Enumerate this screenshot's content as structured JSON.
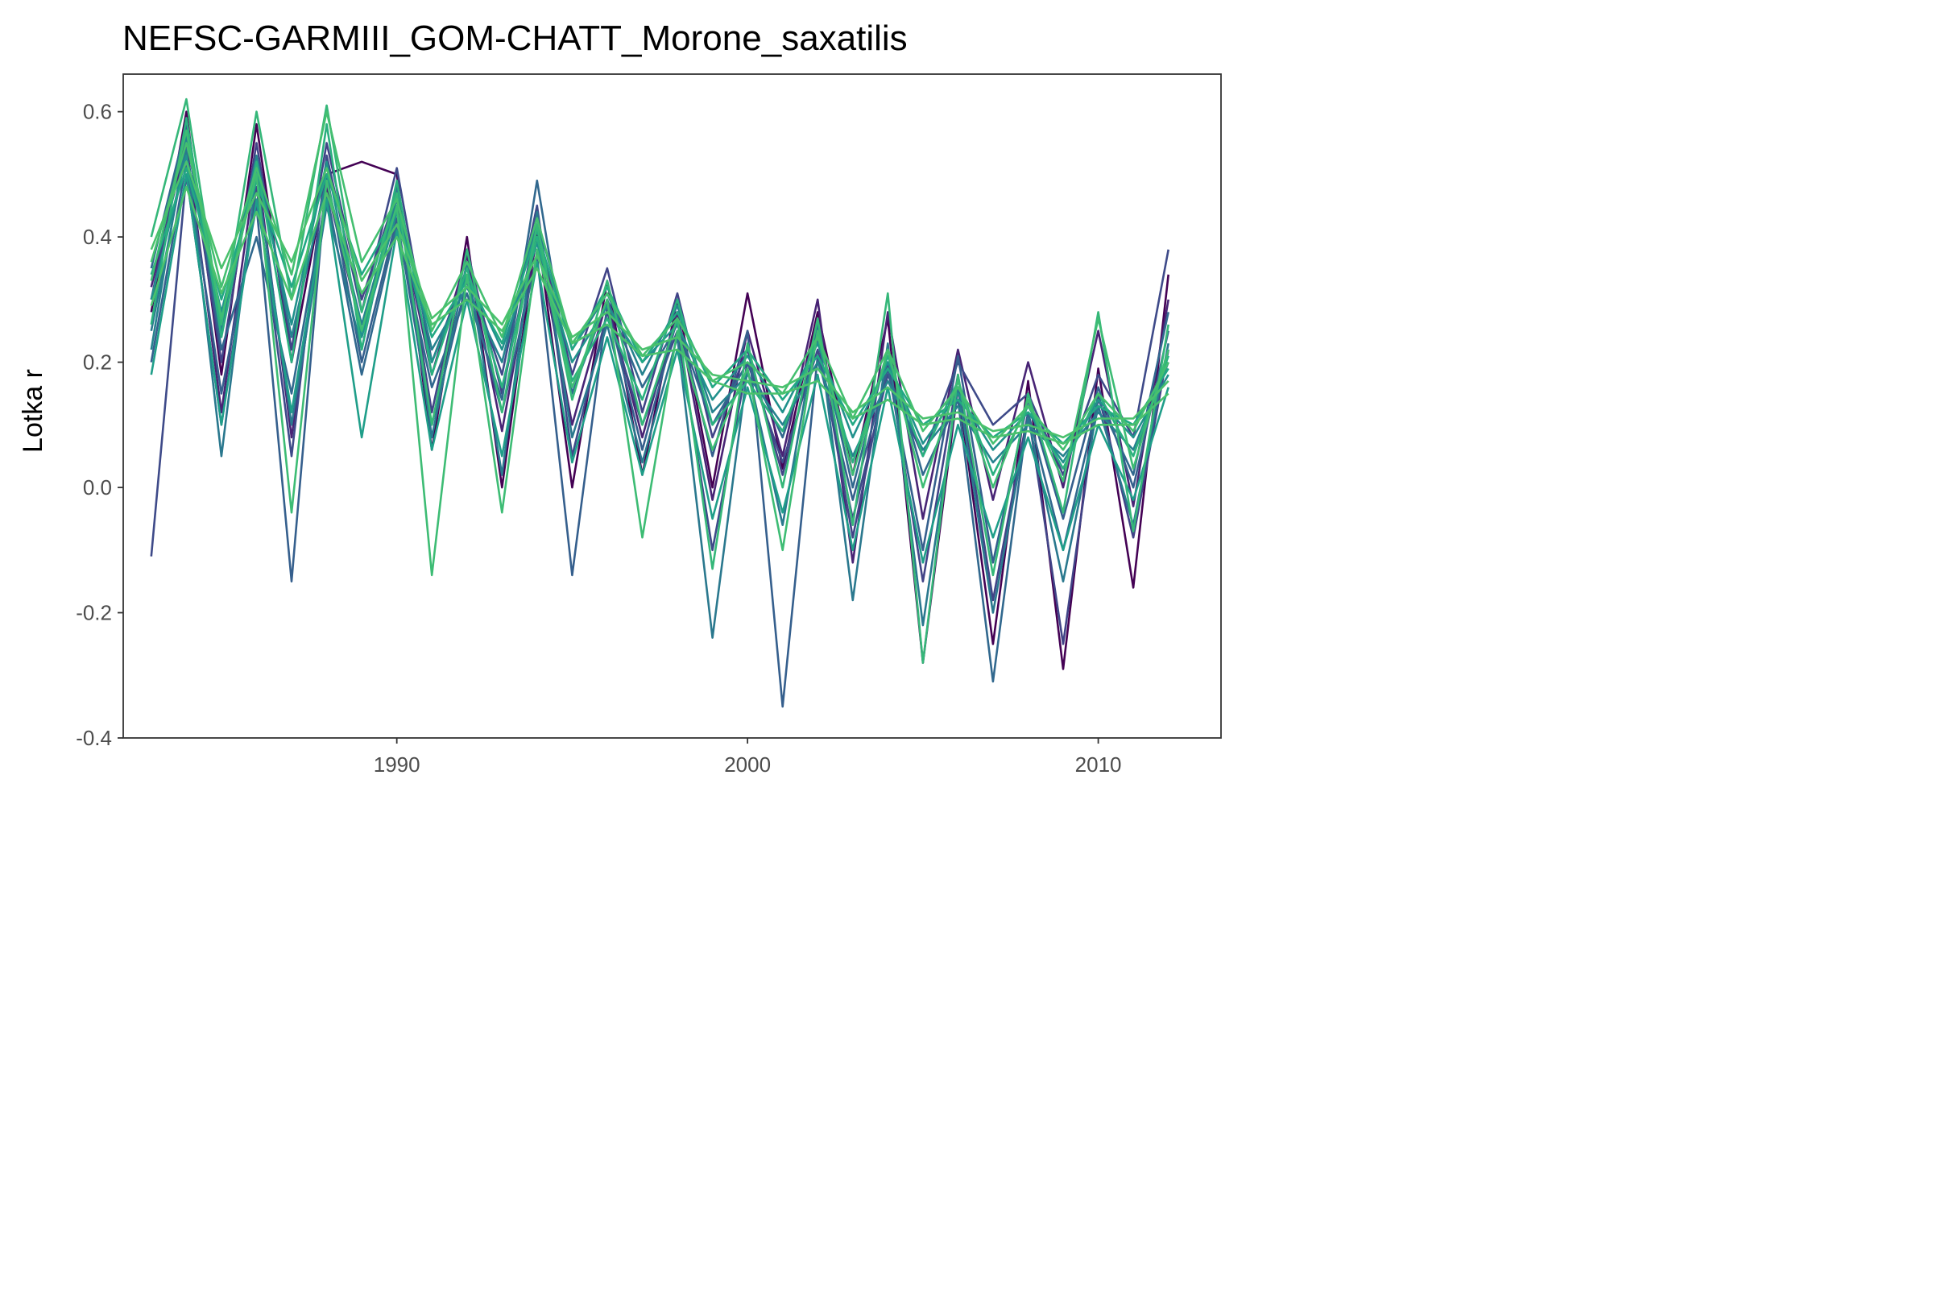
{
  "chart_data": {
    "type": "line",
    "title": "NEFSC-GARMIII_GOM-CHATT_Morone_saxatilis",
    "xlabel": "",
    "ylabel": "Lotka r",
    "xlim": [
      1982.2,
      2013.5
    ],
    "ylim": [
      -0.4,
      0.66
    ],
    "x_ticks": [
      1990,
      2000,
      2010
    ],
    "y_ticks": [
      -0.4,
      -0.2,
      0.0,
      0.2,
      0.4,
      0.6
    ],
    "y_tick_labels": [
      "-0.4",
      "-0.2",
      "0.0",
      "0.2",
      "0.4",
      "0.6"
    ],
    "grid": false,
    "legend": "none",
    "colors": [
      "#440154",
      "#3e4a89",
      "#31688e",
      "#26828e",
      "#1f9e89",
      "#35b779",
      "#4ac16d"
    ],
    "x": [
      1983,
      1984,
      1985,
      1986,
      1987,
      1988,
      1989,
      1990,
      1991,
      1992,
      1993,
      1994,
      1995,
      1996,
      1997,
      1998,
      1999,
      2000,
      2001,
      2002,
      2003,
      2004,
      2005,
      2006,
      2007,
      2008,
      2009,
      2010,
      2011,
      2012
    ],
    "series": [
      {
        "color": "#440154",
        "values": [
          0.28,
          0.6,
          0.18,
          0.58,
          0.2,
          0.5,
          0.52,
          0.5,
          0.06,
          0.4,
          0.0,
          0.41,
          0.0,
          0.33,
          0.02,
          0.3,
          0.0,
          0.31,
          0.03,
          0.28,
          0.02,
          0.27,
          -0.28,
          0.16,
          -0.25,
          0.17,
          -0.29,
          0.19,
          -0.16,
          0.34
        ]
      },
      {
        "color": "#482475",
        "values": [
          0.32,
          0.55,
          0.12,
          0.52,
          0.08,
          0.48,
          0.25,
          0.45,
          0.18,
          0.37,
          0.09,
          0.4,
          0.1,
          0.3,
          0.08,
          0.28,
          -0.02,
          0.25,
          0.05,
          0.3,
          -0.12,
          0.28,
          -0.05,
          0.22,
          -0.02,
          0.2,
          0.0,
          0.25,
          -0.03,
          0.3
        ]
      },
      {
        "color": "#414487",
        "values": [
          0.3,
          0.57,
          0.2,
          0.55,
          0.22,
          0.55,
          0.3,
          0.47,
          0.12,
          0.38,
          0.15,
          0.42,
          0.18,
          0.35,
          0.12,
          0.31,
          0.08,
          0.22,
          0.02,
          0.24,
          -0.08,
          0.2,
          -0.15,
          0.18,
          -0.18,
          0.12,
          -0.25,
          0.15,
          -0.08,
          0.22
        ]
      },
      {
        "color": "#3e4a89",
        "values": [
          -0.11,
          0.5,
          0.1,
          0.48,
          0.05,
          0.53,
          0.28,
          0.51,
          0.2,
          0.35,
          0.18,
          0.45,
          0.05,
          0.28,
          0.1,
          0.25,
          -0.1,
          0.2,
          0.04,
          0.22,
          -0.05,
          0.18,
          0.05,
          0.2,
          0.1,
          0.15,
          0.02,
          0.18,
          0.08,
          0.38
        ]
      },
      {
        "color": "#355f8d",
        "values": [
          0.2,
          0.52,
          0.15,
          0.45,
          -0.15,
          0.5,
          0.2,
          0.43,
          0.1,
          0.33,
          0.12,
          0.37,
          -0.14,
          0.29,
          0.06,
          0.27,
          0.05,
          0.25,
          -0.35,
          0.21,
          -0.02,
          0.19,
          -0.1,
          0.21,
          -0.12,
          0.14,
          -0.05,
          0.16,
          0.0,
          0.25
        ]
      },
      {
        "color": "#31688e",
        "values": [
          0.35,
          0.58,
          0.22,
          0.4,
          0.15,
          0.47,
          0.18,
          0.42,
          0.16,
          0.31,
          0.14,
          0.49,
          0.15,
          0.3,
          0.16,
          0.26,
          0.1,
          0.2,
          0.08,
          0.25,
          0.0,
          0.22,
          0.02,
          0.14,
          -0.31,
          0.12,
          -0.1,
          0.14,
          0.02,
          0.28
        ]
      },
      {
        "color": "#2a788e",
        "values": [
          0.25,
          0.54,
          0.05,
          0.5,
          0.1,
          0.45,
          0.22,
          0.48,
          0.08,
          0.36,
          0.02,
          0.44,
          0.08,
          0.26,
          0.04,
          0.24,
          -0.24,
          0.19,
          -0.06,
          0.26,
          -0.18,
          0.23,
          -0.22,
          0.16,
          -0.2,
          0.11,
          -0.15,
          0.13,
          -0.06,
          0.23
        ]
      },
      {
        "color": "#26828e",
        "values": [
          0.22,
          0.56,
          0.25,
          0.53,
          0.24,
          0.49,
          0.26,
          0.46,
          0.22,
          0.32,
          0.2,
          0.43,
          0.22,
          0.31,
          0.18,
          0.29,
          0.12,
          0.18,
          0.1,
          0.2,
          0.05,
          0.17,
          0.06,
          0.13,
          0.04,
          0.1,
          0.05,
          0.12,
          0.06,
          0.2
        ]
      },
      {
        "color": "#21918c",
        "values": [
          0.3,
          0.53,
          0.28,
          0.51,
          0.26,
          0.52,
          0.24,
          0.44,
          0.2,
          0.34,
          0.22,
          0.39,
          0.2,
          0.29,
          0.2,
          0.26,
          0.14,
          0.21,
          0.12,
          0.23,
          0.08,
          0.2,
          0.07,
          0.15,
          0.06,
          0.12,
          0.04,
          0.14,
          0.08,
          0.18
        ]
      },
      {
        "color": "#1f9e89",
        "values": [
          0.18,
          0.5,
          0.1,
          0.46,
          0.12,
          0.46,
          0.08,
          0.41,
          0.06,
          0.3,
          0.05,
          0.36,
          0.04,
          0.24,
          0.02,
          0.22,
          -0.05,
          0.16,
          -0.04,
          0.18,
          -0.1,
          0.16,
          -0.12,
          0.1,
          -0.08,
          0.08,
          -0.1,
          0.1,
          -0.02,
          0.16
        ]
      },
      {
        "color": "#22a884",
        "values": [
          0.34,
          0.51,
          0.3,
          0.49,
          0.32,
          0.5,
          0.34,
          0.44,
          0.24,
          0.33,
          0.23,
          0.41,
          0.22,
          0.32,
          0.2,
          0.28,
          0.16,
          0.22,
          0.14,
          0.21,
          0.1,
          0.19,
          0.1,
          0.14,
          0.08,
          0.12,
          0.07,
          0.13,
          0.1,
          0.19
        ]
      },
      {
        "color": "#2ab07f",
        "values": [
          0.26,
          0.59,
          0.24,
          0.52,
          0.2,
          0.58,
          0.22,
          0.49,
          0.18,
          0.35,
          0.16,
          0.4,
          0.17,
          0.27,
          0.14,
          0.3,
          0.1,
          0.17,
          0.09,
          0.24,
          0.04,
          0.21,
          0.05,
          0.17,
          0.02,
          0.13,
          0.03,
          0.15,
          0.05,
          0.21
        ]
      },
      {
        "color": "#35b779",
        "values": [
          0.4,
          0.62,
          0.26,
          0.6,
          0.3,
          0.61,
          0.28,
          0.47,
          0.1,
          0.38,
          0.12,
          0.42,
          0.14,
          0.33,
          0.1,
          0.27,
          -0.13,
          0.23,
          0.0,
          0.27,
          -0.06,
          0.31,
          -0.28,
          0.18,
          -0.14,
          0.15,
          -0.04,
          0.28,
          -0.07,
          0.26
        ]
      },
      {
        "color": "#3dbc74",
        "values": [
          0.33,
          0.57,
          0.27,
          0.5,
          -0.04,
          0.49,
          0.25,
          0.45,
          -0.14,
          0.34,
          -0.04,
          0.38,
          0.16,
          0.3,
          -0.08,
          0.25,
          0.06,
          0.19,
          -0.1,
          0.25,
          0.02,
          0.22,
          0.0,
          0.17,
          0.0,
          0.14,
          0.01,
          0.27,
          0.03,
          0.22
        ]
      },
      {
        "color": "#44bf70",
        "values": [
          0.36,
          0.55,
          0.32,
          0.51,
          0.34,
          0.6,
          0.36,
          0.46,
          0.25,
          0.36,
          0.24,
          0.43,
          0.23,
          0.31,
          0.21,
          0.27,
          0.17,
          0.2,
          0.15,
          0.24,
          0.11,
          0.22,
          0.09,
          0.16,
          0.07,
          0.13,
          0.06,
          0.15,
          0.09,
          0.2
        ]
      },
      {
        "color": "#4ac16d",
        "values": [
          0.38,
          0.52,
          0.35,
          0.47,
          0.36,
          0.51,
          0.33,
          0.42,
          0.27,
          0.32,
          0.26,
          0.37,
          0.24,
          0.28,
          0.22,
          0.24,
          0.18,
          0.17,
          0.16,
          0.19,
          0.12,
          0.16,
          0.11,
          0.12,
          0.09,
          0.1,
          0.08,
          0.11,
          0.11,
          0.17
        ]
      },
      {
        "color": "#4ac16d",
        "values": [
          0.29,
          0.48,
          0.31,
          0.44,
          0.3,
          0.47,
          0.31,
          0.4,
          0.26,
          0.3,
          0.25,
          0.35,
          0.23,
          0.26,
          0.21,
          0.22,
          0.17,
          0.15,
          0.15,
          0.17,
          0.11,
          0.14,
          0.1,
          0.11,
          0.08,
          0.09,
          0.07,
          0.1,
          0.1,
          0.15
        ]
      }
    ]
  }
}
